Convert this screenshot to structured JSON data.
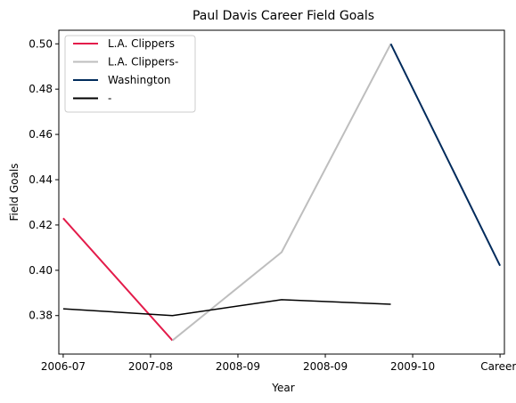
{
  "chart_data": {
    "type": "line",
    "title": "Paul Davis  Career Field Goals",
    "xlabel": "Year",
    "ylabel": "Field Goals",
    "x_categories": [
      "2006-07",
      "2007-08",
      "2008-09",
      "2008-09",
      "2009-10",
      "Career-"
    ],
    "ylim": [
      0.363,
      0.506
    ],
    "yticks": [
      0.38,
      0.4,
      0.42,
      0.44,
      0.46,
      0.48,
      0.5
    ],
    "ytick_labels": [
      "0.38",
      "0.40",
      "0.42",
      "0.44",
      "0.46",
      "0.48",
      "0.50"
    ],
    "grid": false,
    "legend_position": "top-left",
    "series": [
      {
        "name": "L.A. Clippers",
        "color": "#e31b4a",
        "points": [
          {
            "x": 0,
            "y": 0.423
          },
          {
            "x": 1.25,
            "y": 0.369
          }
        ]
      },
      {
        "name": "L.A. Clippers-",
        "color": "#bebebe",
        "points": [
          {
            "x": 1.25,
            "y": 0.369
          },
          {
            "x": 2.5,
            "y": 0.408
          },
          {
            "x": 3.75,
            "y": 0.5
          }
        ]
      },
      {
        "name": "Washington",
        "color": "#002b5c",
        "points": [
          {
            "x": 3.75,
            "y": 0.5
          },
          {
            "x": 5,
            "y": 0.402
          }
        ]
      },
      {
        "name": "-",
        "color": "#000000",
        "points": [
          {
            "x": 0,
            "y": 0.383
          },
          {
            "x": 1.25,
            "y": 0.38
          },
          {
            "x": 2.5,
            "y": 0.387
          },
          {
            "x": 3.75,
            "y": 0.385
          }
        ]
      }
    ]
  }
}
